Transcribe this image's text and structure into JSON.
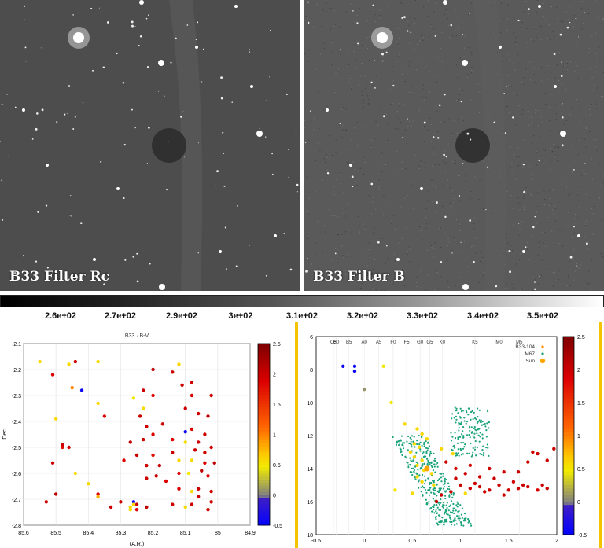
{
  "images": [
    {
      "label": "B33 Filter Rc"
    },
    {
      "label": "B33 Filter B"
    }
  ],
  "colorbar": {
    "ticks": [
      "2.6e+02",
      "2.7e+02",
      "2.9e+02",
      "3e+02",
      "3.1e+02",
      "3.2e+02",
      "3.3e+02",
      "3.4e+02",
      "3.5e+02"
    ]
  },
  "chart_data": [
    {
      "type": "scatter",
      "title": "B33 · B-V",
      "xlabel": "(A.R.)",
      "ylabel": "Dec",
      "xlim": [
        85.6,
        84.9
      ],
      "ylim": [
        -2.8,
        -2.1
      ],
      "x_ticks": [
        "85.6",
        "85.5",
        "85.4",
        "85.3",
        "85.2",
        "85.1",
        "85",
        "84.9"
      ],
      "y_ticks": [
        "-2.1",
        "-2.2",
        "-2.3",
        "-2.4",
        "-2.5",
        "-2.6",
        "-2.7",
        "-2.8"
      ],
      "colorbar": {
        "range": [
          -0.5,
          2.5
        ],
        "ticks": [
          "2.5",
          "2",
          "1.5",
          "1",
          "0.5",
          "0",
          "-0.5"
        ]
      },
      "points": [
        [
          85.55,
          -2.17,
          0.6
        ],
        [
          85.51,
          -2.22,
          1.9
        ],
        [
          85.46,
          -2.18,
          0.6
        ],
        [
          85.44,
          -2.17,
          2.0
        ],
        [
          85.37,
          -2.17,
          0.6
        ],
        [
          85.42,
          -2.28,
          -0.4
        ],
        [
          85.37,
          -2.33,
          0.6
        ],
        [
          85.45,
          -2.27,
          1.0
        ],
        [
          85.35,
          -2.38,
          1.9
        ],
        [
          85.26,
          -2.31,
          0.5
        ],
        [
          85.5,
          -2.39,
          0.6
        ],
        [
          85.2,
          -2.2,
          2.1
        ],
        [
          85.14,
          -2.21,
          2.0
        ],
        [
          85.12,
          -2.18,
          0.6
        ],
        [
          85.23,
          -2.28,
          2.0
        ],
        [
          85.11,
          -2.26,
          2.0
        ],
        [
          85.08,
          -2.25,
          2.0
        ],
        [
          85.2,
          -2.3,
          1.9
        ],
        [
          85.08,
          -2.3,
          1.9
        ],
        [
          85.02,
          -2.3,
          2.0
        ],
        [
          85.03,
          -2.38,
          2.1
        ],
        [
          85.1,
          -2.35,
          2.0
        ],
        [
          85.06,
          -2.37,
          2.0
        ],
        [
          85.23,
          -2.35,
          0.6
        ],
        [
          85.24,
          -2.38,
          2.0
        ],
        [
          85.22,
          -2.42,
          2.0
        ],
        [
          85.17,
          -2.41,
          2.0
        ],
        [
          85.08,
          -2.43,
          1.9
        ],
        [
          85.04,
          -2.45,
          2.0
        ],
        [
          85.1,
          -2.44,
          -0.4
        ],
        [
          85.2,
          -2.45,
          1.9
        ],
        [
          85.23,
          -2.47,
          2.0
        ],
        [
          85.27,
          -2.48,
          2.1
        ],
        [
          85.14,
          -2.47,
          1.9
        ],
        [
          85.1,
          -2.48,
          0.6
        ],
        [
          85.06,
          -2.48,
          2.0
        ],
        [
          85.02,
          -2.5,
          2.0
        ],
        [
          85.07,
          -2.51,
          2.0
        ],
        [
          85.04,
          -2.52,
          2.0
        ],
        [
          85.14,
          -2.52,
          2.0
        ],
        [
          85.2,
          -2.53,
          1.8
        ],
        [
          85.25,
          -2.53,
          2.0
        ],
        [
          85.18,
          -2.57,
          2.0
        ],
        [
          85.22,
          -2.57,
          2.0
        ],
        [
          85.29,
          -2.55,
          1.9
        ],
        [
          85.12,
          -2.55,
          0.6
        ],
        [
          85.08,
          -2.55,
          0.6
        ],
        [
          85.04,
          -2.56,
          1.9
        ],
        [
          85.01,
          -2.56,
          2.1
        ],
        [
          85.05,
          -2.59,
          2.1
        ],
        [
          85.09,
          -2.6,
          0.5
        ],
        [
          85.12,
          -2.6,
          1.9
        ],
        [
          85.19,
          -2.61,
          2.0
        ],
        [
          85.22,
          -2.62,
          2.0
        ],
        [
          85.03,
          -2.61,
          1.9
        ],
        [
          85.16,
          -2.63,
          1.9
        ],
        [
          85.12,
          -2.66,
          1.9
        ],
        [
          85.08,
          -2.67,
          0.6
        ],
        [
          85.06,
          -2.66,
          2.0
        ],
        [
          85.02,
          -2.67,
          2.0
        ],
        [
          85.3,
          -2.71,
          2.0
        ],
        [
          85.25,
          -2.72,
          2.0
        ],
        [
          85.22,
          -2.73,
          2.1
        ],
        [
          85.27,
          -2.73,
          0.6
        ],
        [
          85.14,
          -2.72,
          2.0
        ],
        [
          85.1,
          -2.73,
          0.6
        ],
        [
          85.08,
          -2.72,
          2.0
        ],
        [
          85.06,
          -2.69,
          2.0
        ],
        [
          85.02,
          -2.71,
          2.0
        ],
        [
          85.03,
          -2.74,
          2.0
        ],
        [
          85.48,
          -2.5,
          1.8
        ],
        [
          85.46,
          -2.5,
          2.0
        ],
        [
          85.44,
          -2.6,
          0.6
        ],
        [
          85.4,
          -2.64,
          0.6
        ],
        [
          85.37,
          -2.68,
          1.9
        ],
        [
          85.37,
          -2.69,
          0.8
        ],
        [
          85.33,
          -2.73,
          2.0
        ],
        [
          85.27,
          -2.74,
          0.6
        ],
        [
          85.25,
          -2.74,
          1.9
        ],
        [
          85.26,
          -2.71,
          -0.4
        ],
        [
          85.26,
          -2.72,
          0.6
        ],
        [
          85.53,
          -2.71,
          2.0
        ],
        [
          85.5,
          -2.68,
          2.1
        ],
        [
          85.51,
          -2.56,
          2.0
        ],
        [
          85.48,
          -2.49,
          2.0
        ]
      ]
    },
    {
      "type": "scatter",
      "title": "",
      "xlabel": "",
      "ylabel": "",
      "xlim": [
        -0.5,
        2
      ],
      "ylim": [
        18,
        6
      ],
      "x_ticks": [
        "-0.5",
        "0",
        "0.5",
        "1",
        "1.5",
        "2"
      ],
      "y_ticks": [
        "6",
        "8",
        "10",
        "12",
        "14",
        "16",
        "18"
      ],
      "spectral_types": [
        "O5",
        "B0",
        "B5",
        "A0",
        "A5",
        "F0",
        "F5",
        "G0",
        "G5",
        "K0",
        "K5",
        "M0",
        "M5"
      ],
      "spectral_x": [
        -0.32,
        -0.29,
        -0.16,
        0.0,
        0.15,
        0.3,
        0.44,
        0.58,
        0.68,
        0.81,
        1.15,
        1.4,
        1.61
      ],
      "legend": [
        "B33-104",
        "M67",
        "Sun"
      ],
      "colorbar": {
        "range": [
          -0.5,
          2.5
        ],
        "ticks": [
          "2.5",
          "2",
          "1.5",
          "1",
          "0.5",
          "0",
          "-0.5"
        ]
      },
      "sun": [
        0.65,
        14.0
      ],
      "points": [
        [
          -0.22,
          7.8,
          -0.4
        ],
        [
          -0.1,
          7.8,
          -0.4
        ],
        [
          -0.1,
          8.1,
          -0.4
        ],
        [
          0.2,
          7.8,
          0.5
        ],
        [
          0.0,
          9.2,
          0.1
        ],
        [
          0.28,
          10.0,
          0.5
        ],
        [
          0.42,
          11.3,
          0.6
        ],
        [
          0.55,
          11.6,
          0.6
        ],
        [
          0.6,
          11.9,
          0.6
        ],
        [
          0.65,
          12.2,
          0.6
        ],
        [
          0.52,
          12.5,
          0.6
        ],
        [
          0.57,
          12.7,
          0.6
        ],
        [
          0.48,
          13.0,
          0.6
        ],
        [
          0.52,
          13.3,
          0.6
        ],
        [
          0.6,
          13.5,
          0.6
        ],
        [
          0.55,
          13.8,
          0.6
        ],
        [
          0.62,
          14.1,
          0.6
        ],
        [
          0.7,
          14.3,
          0.6
        ],
        [
          0.55,
          14.5,
          0.6
        ],
        [
          0.6,
          14.8,
          0.6
        ],
        [
          0.72,
          15.0,
          0.6
        ],
        [
          0.5,
          15.5,
          0.6
        ],
        [
          0.32,
          15.3,
          0.5
        ],
        [
          0.8,
          12.8,
          0.6
        ],
        [
          0.92,
          13.1,
          0.6
        ],
        [
          0.85,
          13.6,
          2.0
        ],
        [
          0.95,
          14.0,
          1.9
        ],
        [
          1.05,
          14.3,
          2.0
        ],
        [
          1.1,
          13.8,
          2.0
        ],
        [
          1.2,
          14.5,
          2.0
        ],
        [
          1.3,
          14.0,
          2.0
        ],
        [
          1.35,
          14.6,
          2.0
        ],
        [
          1.45,
          14.2,
          2.0
        ],
        [
          1.55,
          14.8,
          2.0
        ],
        [
          1.6,
          14.2,
          2.0
        ],
        [
          1.7,
          13.6,
          2.0
        ],
        [
          1.8,
          13.1,
          2.0
        ],
        [
          1.9,
          13.5,
          2.0
        ],
        [
          1.97,
          12.8,
          2.0
        ],
        [
          1.75,
          13.0,
          2.0
        ],
        [
          1.0,
          15.0,
          2.0
        ],
        [
          1.1,
          15.2,
          2.0
        ],
        [
          1.2,
          15.1,
          2.0
        ],
        [
          1.3,
          15.3,
          2.0
        ],
        [
          1.4,
          15.0,
          2.0
        ],
        [
          1.5,
          15.3,
          2.0
        ],
        [
          1.6,
          15.2,
          2.0
        ],
        [
          1.7,
          15.1,
          2.0
        ],
        [
          1.8,
          15.3,
          1.9
        ],
        [
          1.9,
          15.2,
          2.0
        ],
        [
          0.9,
          15.4,
          2.0
        ],
        [
          0.8,
          15.6,
          2.0
        ],
        [
          0.75,
          16.0,
          2.0
        ],
        [
          1.05,
          15.5,
          0.6
        ],
        [
          0.95,
          14.6,
          2.0
        ],
        [
          1.15,
          14.9,
          2.0
        ],
        [
          1.25,
          15.4,
          2.0
        ],
        [
          1.45,
          15.6,
          2.0
        ],
        [
          1.65,
          15.0,
          2.0
        ],
        [
          1.85,
          15.0,
          2.0
        ]
      ]
    }
  ]
}
